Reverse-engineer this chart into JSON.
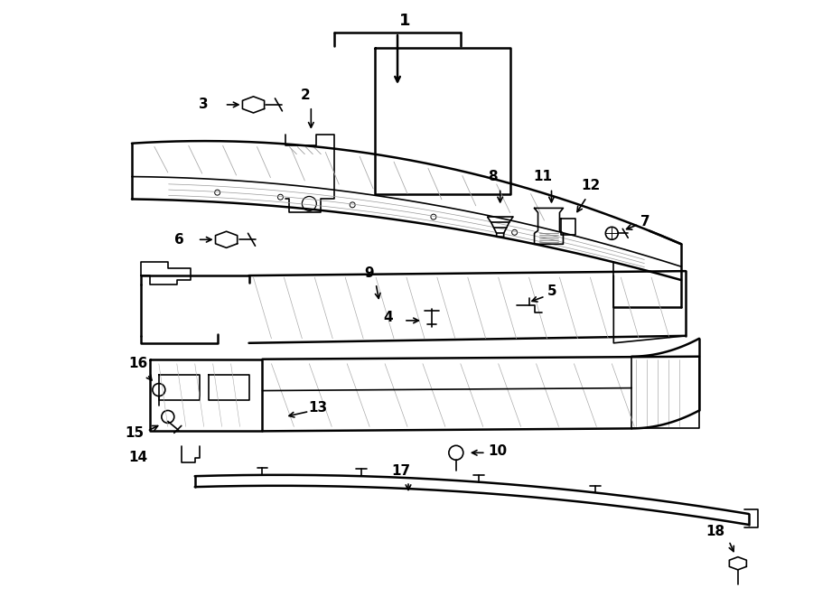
{
  "bg_color": "#ffffff",
  "fig_width": 9.0,
  "fig_height": 6.61,
  "dpi": 100,
  "line_color": "#000000",
  "label_fontsize": 11
}
